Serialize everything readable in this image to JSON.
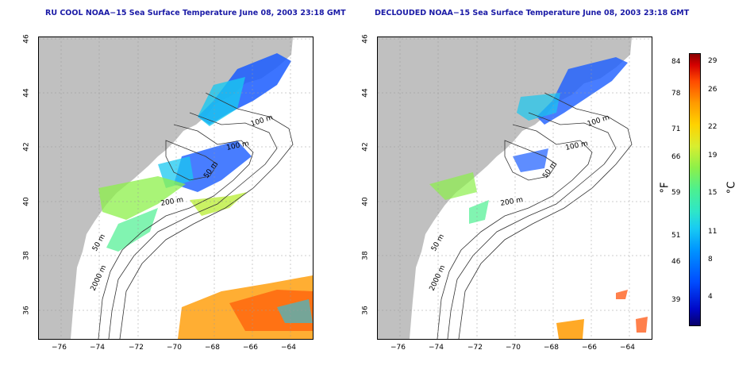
{
  "left_panel": {
    "title": "RU COOL NOAA−15 Sea Surface Temperature June 08, 2003 23:18 GMT",
    "contour_labels": [
      "100 m",
      "100 m",
      "50 m",
      "200 m",
      "50 m",
      "2000 m"
    ]
  },
  "right_panel": {
    "title": "DECLOUDED NOAA−15 Sea Surface Temperature June 08, 2003 23:18 GMT",
    "contour_labels": [
      "100 m",
      "100 m",
      "50 m",
      "200 m",
      "50 m",
      "2000 m"
    ]
  },
  "axes": {
    "x_ticks": [
      "−76",
      "−74",
      "−72",
      "−70",
      "−68",
      "−66",
      "−64"
    ],
    "y_ticks": [
      "46",
      "44",
      "42",
      "40",
      "38",
      "36"
    ]
  },
  "colorbar": {
    "fahrenheit_ticks": [
      "84",
      "78",
      "71",
      "66",
      "59",
      "51",
      "46",
      "39"
    ],
    "celsius_ticks": [
      "29",
      "26",
      "22",
      "19",
      "15",
      "11",
      "8",
      "4"
    ],
    "fahrenheit_unit": "°F",
    "celsius_unit": "°C"
  },
  "colors": {
    "land": "#c0c0c0",
    "title": "#1a1aa6",
    "cold": "#1a5cff",
    "mid": "#19c8f0",
    "warm": "#8cf04a",
    "hot": "#ff4a00"
  }
}
